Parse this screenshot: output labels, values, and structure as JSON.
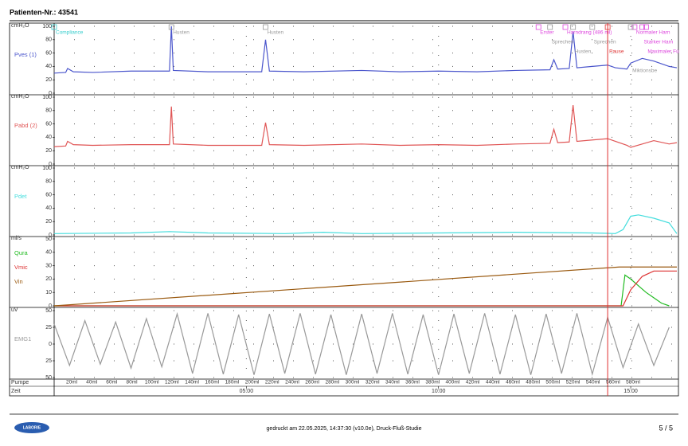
{
  "header": {
    "title": "Patienten-Nr.: 43541"
  },
  "x_axis": {
    "label": "Zeit",
    "xlim": [
      0,
      16.2
    ],
    "xticks": [
      {
        "value": 5,
        "label": "05:00"
      },
      {
        "value": 10,
        "label": "10:00"
      },
      {
        "value": 15,
        "label": "15:00"
      }
    ]
  },
  "pump": {
    "label": "Pumpe",
    "labels": [
      "20ml",
      "40ml",
      "60ml",
      "80ml",
      "100ml",
      "120ml",
      "140ml",
      "160ml",
      "180ml",
      "200ml",
      "220ml",
      "240ml",
      "260ml",
      "280ml",
      "300ml",
      "320ml",
      "340ml",
      "360ml",
      "380ml",
      "400ml",
      "420ml",
      "440ml",
      "460ml",
      "480ml",
      "500ml",
      "520ml",
      "540ml",
      "560ml",
      "580ml"
    ]
  },
  "cursor": 14.4,
  "chart_data": [
    {
      "type": "line",
      "unit": "cmH₂O",
      "ylim": [
        0,
        100
      ],
      "yticks": [
        0,
        20,
        40,
        60,
        80,
        100
      ],
      "grid": true,
      "series": [
        {
          "name": "Pves (1)",
          "color": "#4a55cc",
          "x": [
            0,
            0.3,
            0.35,
            0.5,
            1,
            2,
            3.0,
            3.05,
            3.1,
            4,
            5.4,
            5.5,
            5.6,
            6.5,
            8,
            9,
            10,
            11,
            12,
            12.9,
            13.0,
            13.1,
            13.4,
            13.5,
            13.6,
            14,
            14.4,
            14.6,
            14.9,
            15.0,
            15.3,
            15.6,
            16.0,
            16.2
          ],
          "values": [
            30,
            31,
            37,
            32,
            31,
            33,
            33,
            100,
            34,
            32,
            32,
            80,
            33,
            32,
            34,
            32,
            33,
            32,
            34,
            35,
            50,
            36,
            37,
            92,
            38,
            40,
            42,
            38,
            36,
            45,
            52,
            48,
            40,
            38
          ]
        }
      ],
      "annotations": [
        {
          "x": 0,
          "text": "Compliance",
          "color": "#33cccc"
        },
        {
          "x": 3.05,
          "text": "Husten",
          "color": "#999999"
        },
        {
          "x": 5.5,
          "text": "Husten",
          "color": "#999999"
        },
        {
          "x": 12.6,
          "text": "Erster",
          "color": "#dd44dd"
        },
        {
          "x": 13.3,
          "text": "Harndrang (486 ml)",
          "color": "#dd44dd"
        },
        {
          "x": 12.9,
          "text": "Sprechen",
          "color": "#999999"
        },
        {
          "x": 13.5,
          "text": "Husten",
          "color": "#999999"
        },
        {
          "x": 14.0,
          "text": "Sprechen",
          "color": "#999999"
        },
        {
          "x": 14.4,
          "text": "Pause",
          "color": "#dd3333"
        },
        {
          "x": 15.1,
          "text": "Normaler Harn",
          "color": "#dd44dd"
        },
        {
          "x": 15.3,
          "text": "Starker Harn",
          "color": "#dd44dd"
        },
        {
          "x": 15.4,
          "text": "Maximaler Fü",
          "color": "#dd44dd"
        },
        {
          "x": 15.0,
          "text": "Miktionsbe",
          "color": "#999999"
        }
      ]
    },
    {
      "type": "line",
      "unit": "cmH₂O",
      "ylim": [
        0,
        100
      ],
      "yticks": [
        0,
        20,
        40,
        60,
        80,
        100
      ],
      "grid": true,
      "series": [
        {
          "name": "Pabd (2)",
          "color": "#e05555",
          "x": [
            0,
            0.3,
            0.35,
            0.5,
            1,
            2,
            3.0,
            3.05,
            3.1,
            4,
            5.4,
            5.5,
            5.6,
            6.5,
            8,
            9,
            10,
            11,
            12,
            12.9,
            13.0,
            13.1,
            13.4,
            13.5,
            13.6,
            14,
            14.4,
            14.6,
            14.9,
            15.0,
            15.3,
            15.6,
            16.0,
            16.2
          ],
          "values": [
            26,
            27,
            34,
            29,
            28,
            29,
            29,
            86,
            30,
            28,
            28,
            62,
            29,
            28,
            30,
            28,
            29,
            28,
            30,
            31,
            52,
            32,
            33,
            88,
            34,
            36,
            38,
            34,
            28,
            25,
            30,
            35,
            30,
            32
          ]
        }
      ]
    },
    {
      "type": "line",
      "unit": "cmH₂O",
      "ylim": [
        0,
        100
      ],
      "yticks": [
        0,
        20,
        40,
        60,
        80,
        100
      ],
      "grid": true,
      "series": [
        {
          "name": "Pdet",
          "color": "#44dddd",
          "x": [
            0,
            2,
            3,
            4,
            6,
            7,
            8,
            10,
            12,
            14,
            14.6,
            14.8,
            15.0,
            15.2,
            15.6,
            16.0,
            16.2
          ],
          "values": [
            2,
            3,
            5,
            3,
            2,
            4,
            2,
            3,
            4,
            3,
            2,
            8,
            28,
            30,
            25,
            18,
            2
          ]
        }
      ]
    },
    {
      "type": "line",
      "unit": "ml/s",
      "ylim": [
        0,
        50
      ],
      "yticks": [
        0,
        10,
        20,
        30,
        40,
        50
      ],
      "grid": true,
      "series": [
        {
          "name": "Qura",
          "color": "#22bb22",
          "x": [
            0,
            14.75,
            14.85,
            15.0,
            15.2,
            15.4,
            15.6,
            15.8,
            16.0
          ],
          "values": [
            0,
            0,
            23,
            20,
            15,
            10,
            6,
            2,
            0
          ]
        },
        {
          "name": "Vmic",
          "color": "#dd3333",
          "x": [
            0,
            14.8,
            15.0,
            15.3,
            15.6,
            16.2
          ],
          "values": [
            0,
            0,
            12,
            22,
            26,
            26
          ]
        },
        {
          "name": "Vin",
          "color": "#9a5a10",
          "x": [
            0,
            14.7,
            16.2
          ],
          "values": [
            0,
            29,
            29
          ]
        }
      ]
    },
    {
      "type": "line",
      "unit": "uV",
      "ylim": [
        -50,
        50
      ],
      "yticks": [
        {
          "value": -50,
          "label": "50"
        },
        {
          "value": -25,
          "label": "25"
        },
        0,
        25,
        50
      ],
      "grid": true,
      "series": [
        {
          "name": "EMG1",
          "color": "#999999",
          "x": [
            0,
            0.4,
            0.8,
            1.2,
            1.6,
            2,
            2.4,
            2.8,
            3.2,
            3.6,
            4,
            4.4,
            4.8,
            5.2,
            5.6,
            6,
            6.4,
            6.8,
            7.2,
            7.6,
            8,
            8.4,
            8.8,
            9.2,
            9.6,
            10,
            10.4,
            10.8,
            11.2,
            11.6,
            12,
            12.4,
            12.8,
            13.2,
            13.6,
            14,
            14.4,
            14.8,
            15.2,
            15.6,
            16.0
          ],
          "values": [
            30,
            -32,
            35,
            -30,
            33,
            -36,
            38,
            -34,
            45,
            -44,
            46,
            -45,
            44,
            -46,
            45,
            -44,
            46,
            -45,
            44,
            -46,
            45,
            -44,
            46,
            -45,
            44,
            -46,
            45,
            -44,
            46,
            -45,
            44,
            -46,
            45,
            -44,
            46,
            -45,
            40,
            -35,
            30,
            -32,
            25
          ]
        }
      ]
    }
  ],
  "footer": {
    "logo": "LABORIE",
    "text": "gedruckt am 22.05.2025, 14:37:30 (v10.0e), Druck-Fluß-Studie",
    "page": "5 / 5"
  }
}
